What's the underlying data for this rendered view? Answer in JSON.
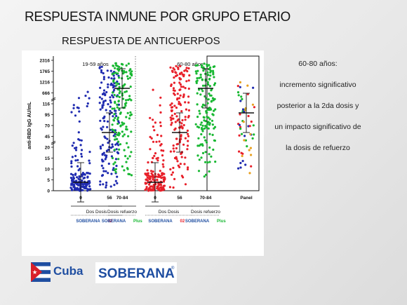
{
  "slide": {
    "title": "RESPUESTA INMUNE POR GRUPO ETARIO",
    "subtitle": "RESPUESTA DE ANTICUERPOS",
    "caption_lines": [
      "60-80 años:",
      "incremento significativo",
      "posterior a la 2da dosis y",
      "un impacto significativo de",
      "la dosis de refuerzo"
    ],
    "logos": {
      "cuba": "Cuba",
      "soberana_mark": "SOBERANA",
      "soberana_reg": "®"
    },
    "colors": {
      "blue": "#1f2bb0",
      "red": "#e8202a",
      "green": "#18b832",
      "black": "#111111"
    }
  },
  "chart_data": {
    "type": "scatter",
    "ylabel": "anti-RBD IgG AU/mL",
    "y_ticks": [
      "0",
      "5",
      "10",
      "15",
      "20",
      "45",
      "70",
      "95",
      "116",
      "666",
      "1216",
      "1765",
      "2316"
    ],
    "panels": [
      {
        "label": "19-59 años",
        "groups": [
          {
            "x": "0",
            "color": "blue",
            "spread": "low",
            "median": 4
          },
          {
            "x": "56",
            "color": "blue",
            "spread": "wide",
            "median": 45
          },
          {
            "x": "70-84",
            "color": "green",
            "spread": "high",
            "median": 60
          }
        ],
        "brackets": [
          {
            "label": "Dos Dosis",
            "brand": "SOBERANA",
            "suffix": "02"
          },
          {
            "label": "Dosis refuerzo",
            "brand": "SOBERANA",
            "suffix": "Plus"
          }
        ]
      },
      {
        "label": "60-80 años",
        "groups": [
          {
            "x": "0",
            "color": "red",
            "spread": "low",
            "median": 2
          },
          {
            "x": "56",
            "color": "red",
            "spread": "wide",
            "median": 10
          },
          {
            "x": "70-84",
            "color": "green",
            "spread": "high",
            "median": 55
          }
        ],
        "brackets": [
          {
            "label": "Dos Dosis",
            "brand": "SOBERANA",
            "suffix": "02"
          },
          {
            "label": "Dosis refuerzo",
            "brand": "SOBERANA",
            "suffix": "Plus"
          }
        ]
      },
      {
        "label": "",
        "groups": [
          {
            "x": "Panel",
            "color": "mixed",
            "spread": "mid",
            "median": 50
          }
        ],
        "brackets": []
      }
    ]
  }
}
